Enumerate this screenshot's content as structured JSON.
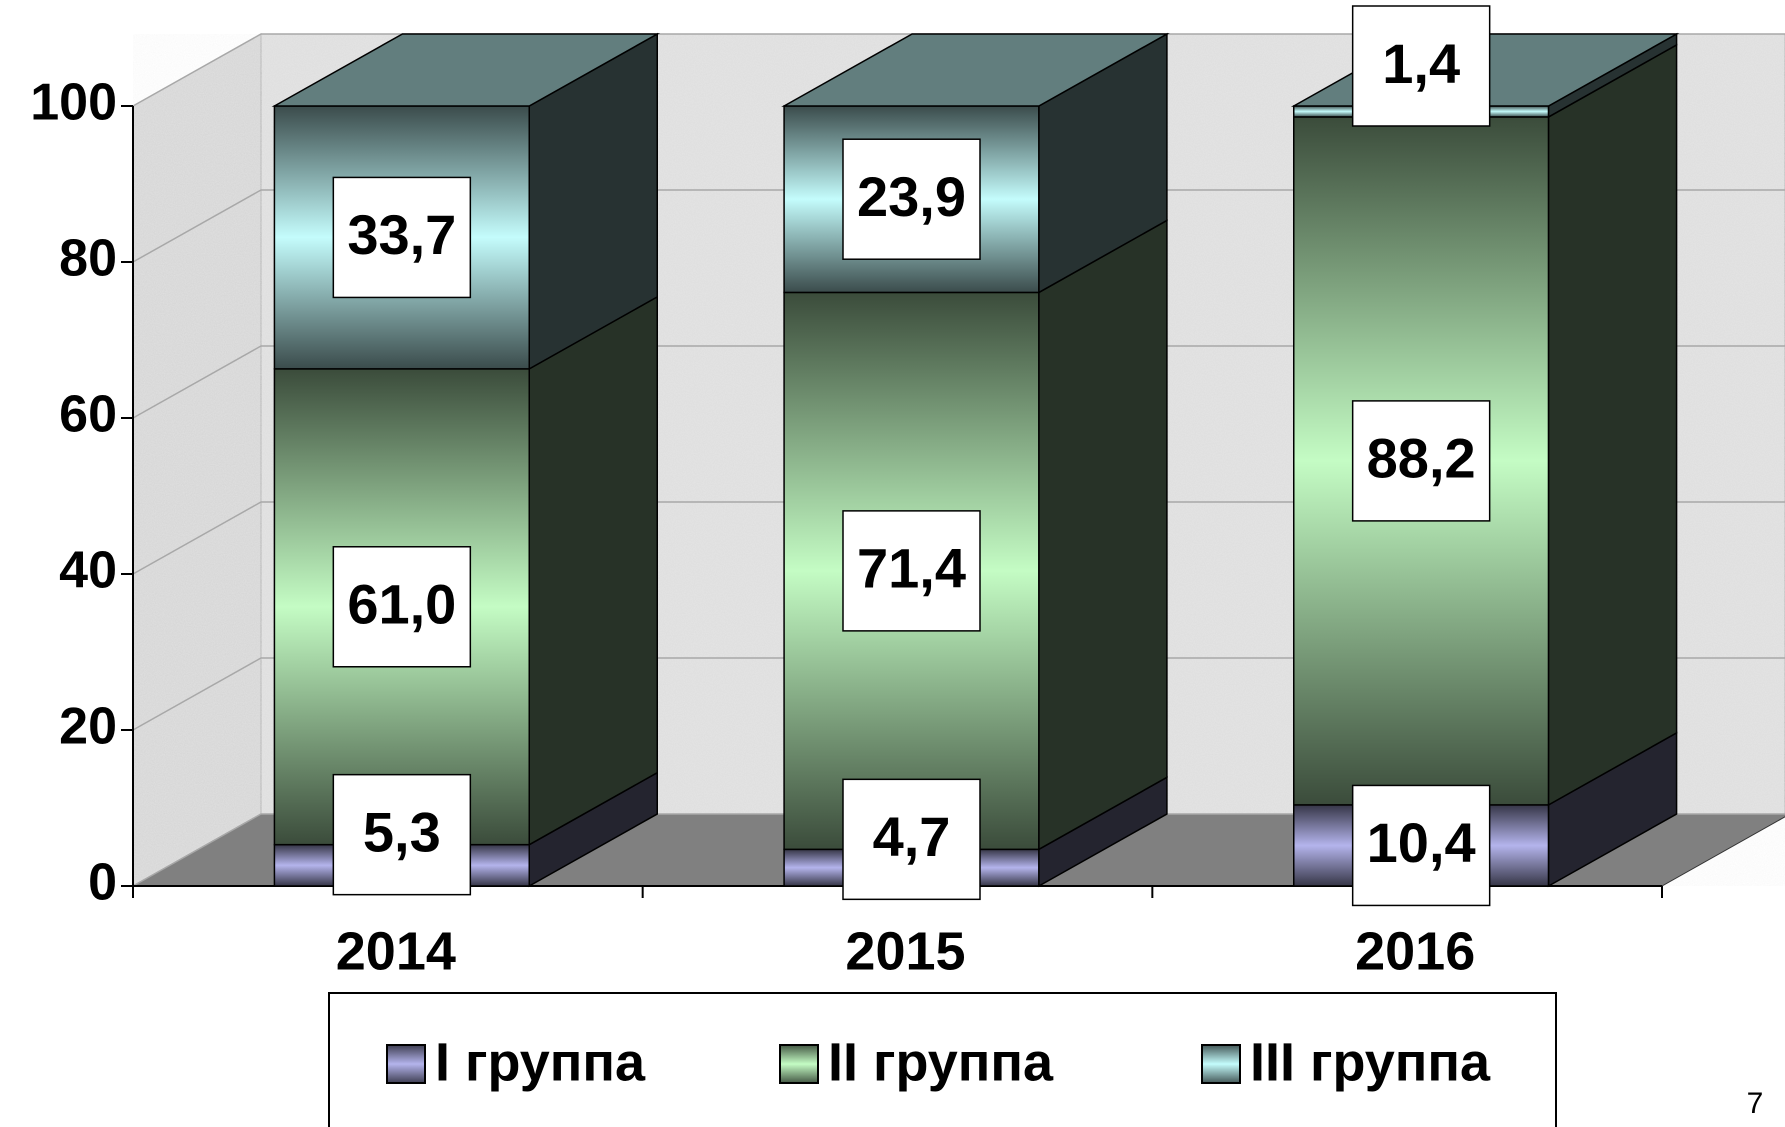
{
  "chart_data": {
    "type": "bar",
    "stacked": true,
    "three_d": true,
    "categories": [
      "2014",
      "2015",
      "2016"
    ],
    "series": [
      {
        "name": "I группа",
        "color": "#b4b4ec",
        "values": [
          5.3,
          4.7,
          10.4
        ],
        "value_labels": [
          "5,3",
          "4,7",
          "10,4"
        ]
      },
      {
        "name": "II группа",
        "color": "#c4fcc4",
        "values": [
          61.0,
          71.4,
          88.2
        ],
        "value_labels": [
          "61,0",
          "71,4",
          "88,2"
        ]
      },
      {
        "name": "III группа",
        "color": "#c4fcfc",
        "values": [
          33.7,
          23.9,
          1.4
        ],
        "value_labels": [
          "33,7",
          "23,9",
          "1,4"
        ]
      }
    ],
    "ylim": [
      0,
      100
    ],
    "yticks": [
      0,
      20,
      40,
      60,
      80,
      100
    ],
    "grid": true,
    "legend": "bottom",
    "page_number": "7"
  }
}
